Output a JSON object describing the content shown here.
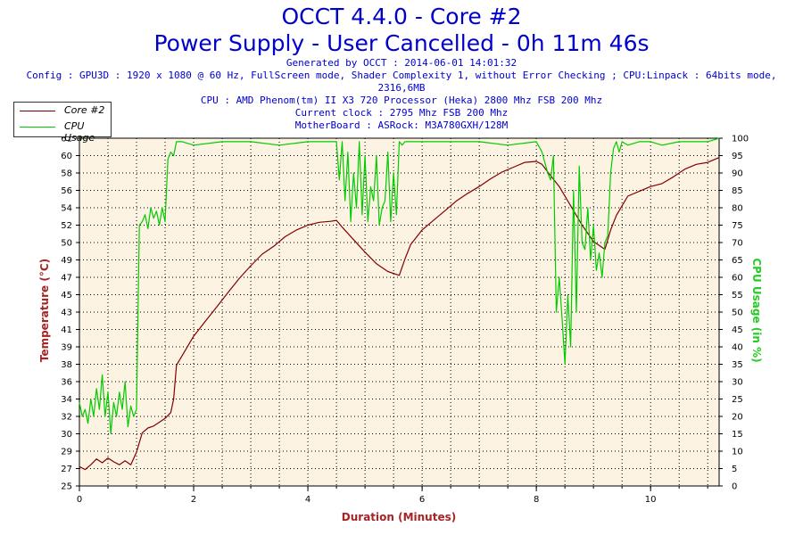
{
  "header": {
    "title": "OCCT 4.4.0 - Core #2",
    "subtitle": "Power Supply - User Cancelled - 0h 11m 46s",
    "generated": "Generated by OCCT : 2014-06-01 14:01:32",
    "config": "Config : GPU3D : 1920 x 1080 @ 60 Hz, FullScreen mode, Shader Complexity 1, without Error Checking ; CPU:Linpack : 64bits mode, 2316,6MB",
    "cpu": "CPU : AMD Phenom(tm) II X3 720 Processor (Heka) 2800 Mhz FSB 200 Mhz",
    "clock": "Current clock : 2795 Mhz FSB 200 Mhz",
    "motherboard": "MotherBoard : ASRock: M3A780GXH/128M"
  },
  "legend": {
    "core": "Core #2",
    "cpu": "CPU Usage"
  },
  "colors": {
    "core": "#800000",
    "cpu": "#00cc00",
    "plot_bg": "#fdf3e2",
    "grid": "#000000",
    "title": "#0000cc",
    "axis_label_left": "#aa2222",
    "axis_label_right": "#22cc22",
    "axis_label_x": "#aa2222"
  },
  "chart_data": {
    "type": "line",
    "title": "OCCT 4.4.0 - Core #2",
    "xlabel": "Duration (Minutes)",
    "ylabel": "Temperature (°C)",
    "y2label": "CPU Usage (in %)",
    "xlim": [
      0,
      11.2
    ],
    "ylim": [
      25,
      61
    ],
    "y2lim": [
      0,
      100
    ],
    "x_ticks": [
      "0",
      "2",
      "4",
      "6",
      "8",
      "10"
    ],
    "y_ticks": [
      "25",
      "27",
      "29",
      "30",
      "32",
      "34",
      "36",
      "38",
      "39",
      "41",
      "43",
      "45",
      "47",
      "49",
      "50",
      "52",
      "54",
      "56",
      "58",
      "60",
      "61"
    ],
    "y2_ticks": [
      "0",
      "5",
      "10",
      "15",
      "20",
      "25",
      "30",
      "35",
      "40",
      "45",
      "50",
      "55",
      "60",
      "65",
      "70",
      "75",
      "80",
      "85",
      "90",
      "95",
      "100"
    ],
    "grid": true,
    "legend_position": "top-left",
    "series": [
      {
        "name": "Core #2",
        "axis": "left",
        "x": [
          0,
          0.1,
          0.2,
          0.3,
          0.4,
          0.5,
          0.6,
          0.7,
          0.8,
          0.9,
          1.0,
          1.1,
          1.2,
          1.3,
          1.5,
          1.6,
          1.65,
          1.7,
          1.8,
          1.9,
          2.0,
          2.2,
          2.4,
          2.6,
          2.8,
          3.0,
          3.2,
          3.4,
          3.6,
          3.8,
          4.0,
          4.2,
          4.4,
          4.5,
          4.6,
          4.8,
          5.0,
          5.2,
          5.4,
          5.6,
          5.7,
          5.8,
          6.0,
          6.2,
          6.4,
          6.6,
          6.8,
          7.0,
          7.2,
          7.4,
          7.6,
          7.8,
          8.0,
          8.1,
          8.2,
          8.4,
          8.6,
          8.8,
          9.0,
          9.2,
          9.3,
          9.4,
          9.5,
          9.6,
          9.8,
          10.0,
          10.2,
          10.4,
          10.6,
          10.8,
          11.0,
          11.2
        ],
        "values": [
          27,
          26.7,
          27.2,
          27.8,
          27.4,
          27.9,
          27.5,
          27.2,
          27.6,
          27.2,
          28.5,
          30.5,
          31.0,
          31.2,
          32.0,
          32.6,
          34,
          37.5,
          38.5,
          39.5,
          40.5,
          42.0,
          43.5,
          45.0,
          46.5,
          47.8,
          49.0,
          49.8,
          50.8,
          51.5,
          52.0,
          52.3,
          52.4,
          52.5,
          51.8,
          50.5,
          49.2,
          48.0,
          47.2,
          46.8,
          48.5,
          50.0,
          51.5,
          52.5,
          53.5,
          54.5,
          55.3,
          56.0,
          56.8,
          57.5,
          58.0,
          58.5,
          58.6,
          58.3,
          57.5,
          56.0,
          54.0,
          52.0,
          50.3,
          49.5,
          51.5,
          53.0,
          54.0,
          55.0,
          55.5,
          56.0,
          56.3,
          57.0,
          57.8,
          58.3,
          58.5,
          59.0
        ]
      },
      {
        "name": "CPU Usage",
        "axis": "right",
        "x": [
          0,
          0.05,
          0.1,
          0.15,
          0.2,
          0.25,
          0.3,
          0.35,
          0.4,
          0.45,
          0.5,
          0.55,
          0.6,
          0.65,
          0.7,
          0.75,
          0.8,
          0.85,
          0.9,
          0.95,
          1.0,
          1.05,
          1.1,
          1.15,
          1.2,
          1.25,
          1.3,
          1.35,
          1.4,
          1.45,
          1.5,
          1.55,
          1.6,
          1.65,
          1.7,
          1.8,
          2.0,
          2.5,
          3.0,
          3.5,
          4.0,
          4.5,
          4.55,
          4.6,
          4.65,
          4.7,
          4.75,
          4.8,
          4.85,
          4.9,
          4.95,
          5.0,
          5.05,
          5.1,
          5.15,
          5.2,
          5.25,
          5.3,
          5.35,
          5.4,
          5.45,
          5.5,
          5.55,
          5.6,
          5.65,
          5.7,
          5.8,
          6.0,
          6.5,
          7.0,
          7.5,
          8.0,
          8.1,
          8.2,
          8.25,
          8.3,
          8.35,
          8.4,
          8.45,
          8.5,
          8.55,
          8.6,
          8.65,
          8.7,
          8.75,
          8.8,
          8.85,
          8.9,
          8.95,
          9.0,
          9.05,
          9.1,
          9.15,
          9.2,
          9.25,
          9.3,
          9.35,
          9.4,
          9.45,
          9.5,
          9.6,
          9.8,
          10.0,
          10.2,
          10.5,
          11.0,
          11.2
        ],
        "values": [
          24,
          20,
          22,
          18,
          25,
          20,
          28,
          22,
          32,
          20,
          27,
          15,
          24,
          20,
          27,
          22,
          30,
          17,
          23,
          20,
          22,
          75,
          76,
          78,
          74,
          80,
          77,
          79,
          75,
          80,
          76,
          94,
          96,
          95,
          99,
          99,
          98,
          99,
          99,
          98,
          99,
          99,
          88,
          99,
          82,
          96,
          76,
          90,
          80,
          99,
          78,
          95,
          76,
          86,
          82,
          95,
          75,
          80,
          82,
          96,
          76,
          90,
          78,
          99,
          98,
          99,
          99,
          99,
          99,
          99,
          98,
          99,
          96,
          90,
          88,
          95,
          50,
          60,
          48,
          35,
          55,
          40,
          85,
          50,
          92,
          70,
          68,
          80,
          65,
          75,
          62,
          67,
          60,
          70,
          72,
          90,
          97,
          99,
          96,
          99,
          98,
          99,
          99,
          98,
          99,
          99,
          100
        ]
      }
    ]
  }
}
